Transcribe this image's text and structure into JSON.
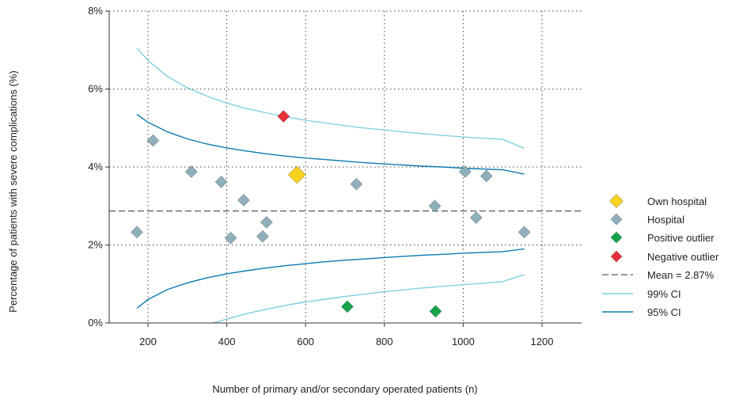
{
  "chart_data": {
    "type": "scatter",
    "xlabel": "Number of primary and/or secondary operated patients (n)",
    "ylabel": "Percentage of patients with severe complications (%)",
    "xlim": [
      130,
      1300
    ],
    "ylim": [
      0,
      8
    ],
    "x_ticks": [
      200,
      400,
      600,
      800,
      1000,
      1200
    ],
    "y_ticks": [
      0,
      2,
      4,
      6,
      8
    ],
    "y_tick_labels": [
      "0%",
      "2%",
      "4%",
      "6%",
      "8%"
    ],
    "grid": true,
    "legend_position": "right",
    "series": [
      {
        "name": "Own hospital",
        "marker": "diamond",
        "color": "#f9d21f",
        "size": "large",
        "points": [
          [
            578,
            3.8
          ]
        ]
      },
      {
        "name": "Hospital",
        "marker": "diamond",
        "color": "#8fb0ba",
        "points": [
          [
            172,
            2.33
          ],
          [
            213,
            4.68
          ],
          [
            310,
            3.88
          ],
          [
            386,
            3.62
          ],
          [
            410,
            2.18
          ],
          [
            443,
            3.15
          ],
          [
            491,
            2.22
          ],
          [
            501,
            2.58
          ],
          [
            729,
            3.56
          ],
          [
            928,
            3.0
          ],
          [
            1005,
            3.88
          ],
          [
            1033,
            2.7
          ],
          [
            1059,
            3.77
          ],
          [
            1155,
            2.33
          ]
        ]
      },
      {
        "name": "Positive outlier",
        "marker": "diamond",
        "color": "#16a34a",
        "points": [
          [
            706,
            0.42
          ],
          [
            930,
            0.3
          ]
        ]
      },
      {
        "name": "Negative outlier",
        "marker": "diamond",
        "color": "#e8303a",
        "points": [
          [
            544,
            5.3
          ]
        ]
      }
    ],
    "mean": {
      "name": "Mean = 2.87%",
      "value": 2.87,
      "style": "dashed",
      "color": "#333333"
    },
    "ci_99": {
      "name": "99% CI",
      "color": "#7fd0df",
      "upper": [
        [
          172,
          7.05
        ],
        [
          200,
          6.73
        ],
        [
          250,
          6.32
        ],
        [
          300,
          6.03
        ],
        [
          350,
          5.82
        ],
        [
          400,
          5.64
        ],
        [
          450,
          5.5
        ],
        [
          500,
          5.39
        ],
        [
          550,
          5.29
        ],
        [
          600,
          5.2
        ],
        [
          650,
          5.13
        ],
        [
          700,
          5.06
        ],
        [
          750,
          5.0
        ],
        [
          800,
          4.95
        ],
        [
          850,
          4.9
        ],
        [
          900,
          4.85
        ],
        [
          950,
          4.81
        ],
        [
          1000,
          4.77
        ],
        [
          1050,
          4.74
        ],
        [
          1100,
          4.71
        ],
        [
          1155,
          4.48
        ]
      ],
      "lower": [
        [
          365,
          0.0
        ],
        [
          400,
          0.1
        ],
        [
          450,
          0.24
        ],
        [
          500,
          0.35
        ],
        [
          550,
          0.45
        ],
        [
          600,
          0.54
        ],
        [
          650,
          0.61
        ],
        [
          700,
          0.68
        ],
        [
          750,
          0.74
        ],
        [
          800,
          0.8
        ],
        [
          850,
          0.85
        ],
        [
          900,
          0.9
        ],
        [
          950,
          0.94
        ],
        [
          1000,
          0.98
        ],
        [
          1050,
          1.02
        ],
        [
          1100,
          1.06
        ],
        [
          1155,
          1.24
        ]
      ]
    },
    "ci_95": {
      "name": "95% CI",
      "color": "#0e7bb0",
      "upper": [
        [
          172,
          5.35
        ],
        [
          200,
          5.15
        ],
        [
          250,
          4.9
        ],
        [
          300,
          4.72
        ],
        [
          350,
          4.59
        ],
        [
          400,
          4.49
        ],
        [
          450,
          4.41
        ],
        [
          500,
          4.34
        ],
        [
          550,
          4.28
        ],
        [
          600,
          4.23
        ],
        [
          650,
          4.19
        ],
        [
          700,
          4.15
        ],
        [
          750,
          4.11
        ],
        [
          800,
          4.08
        ],
        [
          850,
          4.05
        ],
        [
          900,
          4.02
        ],
        [
          950,
          4.0
        ],
        [
          1000,
          3.97
        ],
        [
          1050,
          3.95
        ],
        [
          1100,
          3.93
        ],
        [
          1155,
          3.82
        ]
      ],
      "lower": [
        [
          172,
          0.38
        ],
        [
          200,
          0.6
        ],
        [
          250,
          0.86
        ],
        [
          300,
          1.03
        ],
        [
          350,
          1.16
        ],
        [
          400,
          1.26
        ],
        [
          450,
          1.34
        ],
        [
          500,
          1.41
        ],
        [
          550,
          1.47
        ],
        [
          600,
          1.52
        ],
        [
          650,
          1.57
        ],
        [
          700,
          1.61
        ],
        [
          750,
          1.64
        ],
        [
          800,
          1.68
        ],
        [
          850,
          1.71
        ],
        [
          900,
          1.74
        ],
        [
          950,
          1.76
        ],
        [
          1000,
          1.79
        ],
        [
          1050,
          1.81
        ],
        [
          1100,
          1.83
        ],
        [
          1155,
          1.9
        ]
      ]
    }
  }
}
